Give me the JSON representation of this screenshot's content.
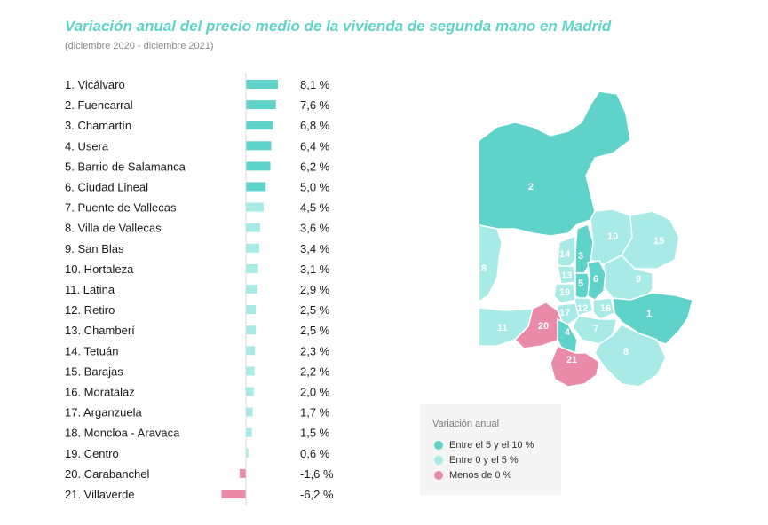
{
  "header": {
    "title": "Variación anual del precio medio de la vivienda de segunda mano en Madrid",
    "subtitle": "(diciembre 2020 - diciembre 2021)"
  },
  "colors": {
    "high": "#5fd3c9",
    "mid": "#a8ebe6",
    "negative": "#e98aa9",
    "axis": "#d8d8d8",
    "title": "#5fd3c9"
  },
  "chart_data": {
    "type": "bar",
    "orientation": "horizontal",
    "title": "Variación anual del precio medio de la vivienda de segunda mano en Madrid",
    "subtitle": "(diciembre 2020 - diciembre 2021)",
    "categories": [
      "1. Vicálvaro",
      "2. Fuencarral",
      "3. Chamartín",
      "4. Usera",
      "5. Barrio de Salamanca",
      "6. Ciudad Lineal",
      "7. Puente de Vallecas",
      "8. Villa de Vallecas",
      "9. San Blas",
      "10. Hortaleza",
      "11. Latina",
      "12. Retiro",
      "13. Chamberí",
      "14. Tetuán",
      "15. Barajas",
      "16. Moratalaz",
      "17. Arganzuela",
      "18. Moncloa - Aravaca",
      "19. Centro",
      "20. Carabanchel",
      "21. Villaverde"
    ],
    "values": [
      8.1,
      7.6,
      6.8,
      6.4,
      6.2,
      5.0,
      4.5,
      3.6,
      3.4,
      3.1,
      2.9,
      2.5,
      2.5,
      2.3,
      2.2,
      2.0,
      1.7,
      1.5,
      0.6,
      -1.6,
      -6.2
    ],
    "value_labels": [
      "8,1 %",
      "7,6 %",
      "6,8 %",
      "6,4 %",
      "6,2 %",
      "5,0 %",
      "4,5 %",
      "3,6 %",
      "3,4 %",
      "3,1 %",
      "2,9 %",
      "2,5 %",
      "2,5 %",
      "2,3 %",
      "2,2 %",
      "2,0 %",
      "1,7 %",
      "1,5 %",
      "0,6 %",
      "-1,6 %",
      "-6,2 %"
    ],
    "color_groups": [
      "high",
      "high",
      "high",
      "high",
      "high",
      "high",
      "mid",
      "mid",
      "mid",
      "mid",
      "mid",
      "mid",
      "mid",
      "mid",
      "mid",
      "mid",
      "mid",
      "mid",
      "mid",
      "negative",
      "negative"
    ],
    "xlim": [
      -6.2,
      8.1
    ],
    "grid": false,
    "legend_position": "bottom-right"
  },
  "map": {
    "district_labels": [
      "1",
      "2",
      "3",
      "4",
      "5",
      "6",
      "7",
      "8",
      "9",
      "10",
      "11",
      "12",
      "13",
      "14",
      "15",
      "16",
      "17",
      "18",
      "19",
      "20",
      "21"
    ],
    "district_groups": [
      "high",
      "high",
      "high",
      "high",
      "high",
      "high",
      "mid",
      "mid",
      "mid",
      "mid",
      "mid",
      "mid",
      "mid",
      "mid",
      "mid",
      "mid",
      "mid",
      "mid",
      "mid",
      "negative",
      "negative"
    ]
  },
  "legend": {
    "title": "Variación anual",
    "items": [
      {
        "label": "Entre el 5 y el 10 %",
        "color": "#5fd3c9"
      },
      {
        "label": "Entre 0 y el 5 %",
        "color": "#a8ebe6"
      },
      {
        "label": "Menos de 0 %",
        "color": "#e98aa9"
      }
    ]
  }
}
